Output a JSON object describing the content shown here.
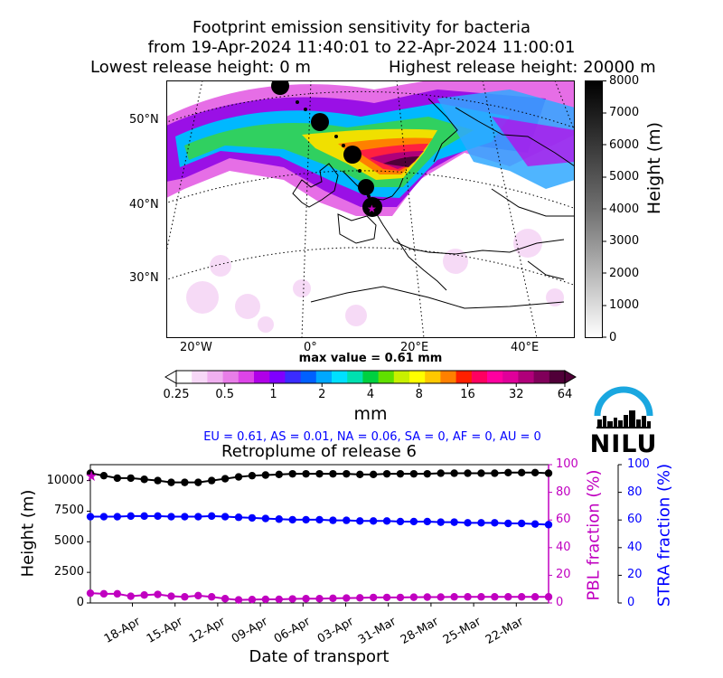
{
  "header": {
    "line1": "Footprint emission sensitivity for bacteria",
    "line2": "from 19-Apr-2024 11:40:01 to 22-Apr-2024 11:00:01",
    "lowest": "Lowest release height: 0 m",
    "highest": "Highest release height: 20000 m"
  },
  "map": {
    "lat_labels": [
      "50°N",
      "40°N",
      "30°N"
    ],
    "lon_labels": [
      "20°W",
      "0°",
      "20°E",
      "40°E"
    ],
    "max_value_text": "max value = 0.61 mm"
  },
  "height_colorbar": {
    "label": "Height (m)",
    "ticks": [
      "8000",
      "7000",
      "6000",
      "5000",
      "4000",
      "3000",
      "2000",
      "1000",
      "0"
    ]
  },
  "value_colorbar": {
    "ticks": [
      "0.25",
      "0.5",
      "1",
      "2",
      "4",
      "8",
      "16",
      "32",
      "64"
    ],
    "unit": "mm",
    "colors": [
      "#ffffff",
      "#f7d8f7",
      "#f0b0f0",
      "#e87ee8",
      "#dd44e8",
      "#b000e8",
      "#7f00ff",
      "#3a2cff",
      "#0060ff",
      "#00a8ff",
      "#00e0ff",
      "#00e0b0",
      "#00d040",
      "#60e000",
      "#c8f000",
      "#ffff00",
      "#ffc800",
      "#ff8000",
      "#ff2000",
      "#ff0060",
      "#ff00a0",
      "#e0009a",
      "#b0007a",
      "#80005a",
      "#500038"
    ]
  },
  "region_fractions": {
    "text": "EU = 0.61,  AS = 0.01,  NA = 0.06,  SA = 0,  AF = 0,  AU = 0",
    "color": "#0000ff"
  },
  "logo": {
    "text": "NILU",
    "arc_color": "#1aa7e0"
  },
  "colors": {
    "height": "#000000",
    "pbl": "#c000c0",
    "stra": "#0000ff",
    "release_star": "#c000c0"
  },
  "chart_data": {
    "type": "line",
    "title": "Retroplume of release 6",
    "xlabel": "Date of transport",
    "x_ticks": [
      "18-Apr",
      "15-Apr",
      "12-Apr",
      "09-Apr",
      "06-Apr",
      "03-Apr",
      "31-Mar",
      "28-Mar",
      "25-Mar",
      "22-Mar"
    ],
    "x_days_back": [
      0,
      1,
      2,
      3,
      4,
      5,
      6,
      7,
      8,
      9,
      10,
      11,
      12,
      13,
      14,
      15,
      16,
      17,
      18,
      19,
      20,
      21,
      22,
      23,
      24,
      25,
      26,
      27,
      28,
      29,
      30,
      31,
      32,
      33,
      34,
      35,
      36,
      37,
      38,
      39,
      40,
      41,
      42,
      43,
      44,
      45,
      46,
      47,
      48,
      49,
      50,
      51,
      52,
      53,
      54,
      55,
      56,
      57,
      58,
      59,
      60
    ],
    "x_range_days_back": [
      0,
      60
    ],
    "y_left": {
      "label": "Height (m)",
      "range": [
        0,
        11300
      ],
      "ticks": [
        0,
        2500,
        5000,
        7500,
        10000
      ]
    },
    "y_right_pbl": {
      "label": "PBL fraction (%)",
      "range": [
        0,
        100
      ],
      "ticks": [
        0,
        20,
        40,
        60,
        80,
        100
      ]
    },
    "y_right_stra": {
      "label": "STRA fraction (%)",
      "range": [
        0,
        100
      ],
      "ticks": [
        0,
        20,
        40,
        60,
        80,
        100
      ]
    },
    "series": [
      {
        "axis": "height",
        "points": [
          [
            0,
            10600
          ],
          [
            3,
            10400
          ],
          [
            6,
            10200
          ],
          [
            9,
            10200
          ],
          [
            12,
            10100
          ],
          [
            15,
            10000
          ],
          [
            18,
            9850
          ],
          [
            21,
            9850
          ],
          [
            24,
            9850
          ],
          [
            27,
            10000
          ],
          [
            30,
            10150
          ],
          [
            33,
            10300
          ],
          [
            36,
            10400
          ],
          [
            39,
            10450
          ],
          [
            42,
            10500
          ],
          [
            45,
            10550
          ],
          [
            48,
            10550
          ],
          [
            51,
            10550
          ],
          [
            54,
            10550
          ],
          [
            57,
            10550
          ],
          [
            60,
            10500
          ],
          [
            63,
            10500
          ],
          [
            66,
            10550
          ],
          [
            69,
            10550
          ],
          [
            72,
            10550
          ],
          [
            75,
            10550
          ],
          [
            78,
            10600
          ],
          [
            81,
            10600
          ],
          [
            84,
            10600
          ],
          [
            87,
            10600
          ],
          [
            90,
            10600
          ],
          [
            93,
            10650
          ],
          [
            96,
            10650
          ],
          [
            99,
            10650
          ],
          [
            102,
            10600
          ]
        ],
        "color_key": "height"
      },
      {
        "axis": "height",
        "points": [
          [
            0,
            7050
          ],
          [
            3,
            7050
          ],
          [
            6,
            7050
          ],
          [
            9,
            7100
          ],
          [
            12,
            7100
          ],
          [
            15,
            7100
          ],
          [
            18,
            7050
          ],
          [
            21,
            7050
          ],
          [
            24,
            7050
          ],
          [
            27,
            7100
          ],
          [
            30,
            7050
          ],
          [
            33,
            7000
          ],
          [
            36,
            6950
          ],
          [
            39,
            6900
          ],
          [
            42,
            6850
          ],
          [
            45,
            6800
          ],
          [
            48,
            6800
          ],
          [
            51,
            6800
          ],
          [
            54,
            6750
          ],
          [
            57,
            6750
          ],
          [
            60,
            6700
          ],
          [
            63,
            6700
          ],
          [
            66,
            6700
          ],
          [
            69,
            6650
          ],
          [
            72,
            6650
          ],
          [
            75,
            6650
          ],
          [
            78,
            6600
          ],
          [
            81,
            6600
          ],
          [
            84,
            6550
          ],
          [
            87,
            6550
          ],
          [
            90,
            6550
          ],
          [
            93,
            6500
          ],
          [
            96,
            6500
          ],
          [
            99,
            6450
          ],
          [
            102,
            6400
          ]
        ],
        "color_key": "stra"
      },
      {
        "axis": "height",
        "points": [
          [
            0,
            800
          ],
          [
            3,
            750
          ],
          [
            6,
            750
          ],
          [
            9,
            550
          ],
          [
            12,
            650
          ],
          [
            15,
            700
          ],
          [
            18,
            550
          ],
          [
            21,
            500
          ],
          [
            24,
            600
          ],
          [
            27,
            500
          ],
          [
            30,
            350
          ],
          [
            33,
            250
          ],
          [
            36,
            280
          ],
          [
            39,
            300
          ],
          [
            42,
            300
          ],
          [
            45,
            330
          ],
          [
            48,
            350
          ],
          [
            51,
            350
          ],
          [
            54,
            380
          ],
          [
            57,
            400
          ],
          [
            60,
            420
          ],
          [
            63,
            450
          ],
          [
            66,
            450
          ],
          [
            69,
            450
          ],
          [
            72,
            470
          ],
          [
            75,
            480
          ],
          [
            78,
            480
          ],
          [
            81,
            500
          ],
          [
            84,
            500
          ],
          [
            87,
            500
          ],
          [
            90,
            500
          ],
          [
            93,
            500
          ],
          [
            96,
            500
          ],
          [
            99,
            500
          ],
          [
            102,
            500
          ]
        ],
        "color_key": "pbl"
      }
    ]
  }
}
